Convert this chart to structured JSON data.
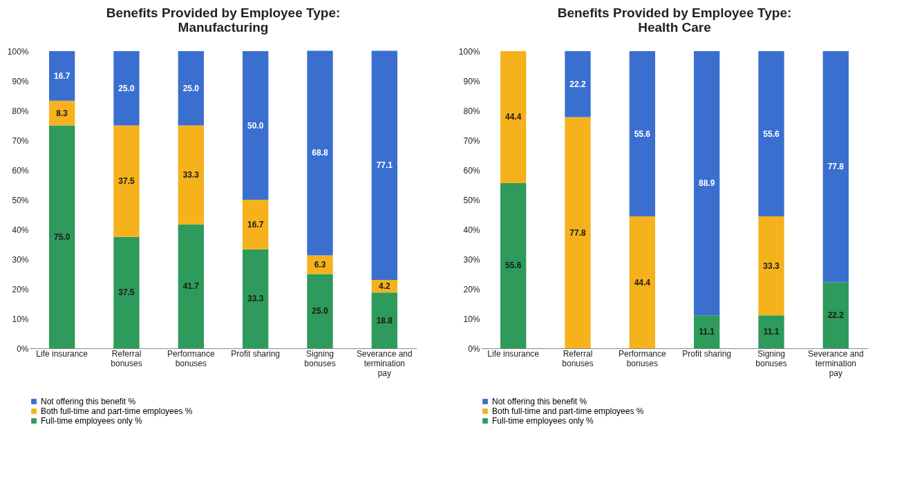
{
  "chart_data": [
    {
      "type": "bar",
      "title": "Benefits Provided by Employee Type: Manufacturing",
      "stacked": true,
      "legend": "bottom",
      "categories": [
        "Life insurance",
        "Referral bonuses",
        "Performance bonuses",
        "Profit sharing",
        "Signing bonuses",
        "Severance and termination pay"
      ],
      "ylim": [
        0,
        100
      ],
      "yticks": [
        {
          "value": 0,
          "label": "0%"
        },
        {
          "value": 10,
          "label": "10%"
        },
        {
          "value": 20,
          "label": "20%"
        },
        {
          "value": 30,
          "label": "30%"
        },
        {
          "value": 40,
          "label": "40%"
        },
        {
          "value": 50,
          "label": "50%"
        },
        {
          "value": 60,
          "label": "60%"
        },
        {
          "value": 70,
          "label": "70%"
        },
        {
          "value": 80,
          "label": "80%"
        },
        {
          "value": 90,
          "label": "90%"
        },
        {
          "value": 100,
          "label": "100%"
        }
      ],
      "series": [
        {
          "name": "Full-time employees only %",
          "color": "#2e9a5c",
          "values": [
            75.0,
            37.5,
            41.7,
            33.3,
            25.0,
            18.8
          ],
          "value_labels": [
            "75.0",
            "37.5",
            "41.7",
            "33.3",
            "25.0",
            "18.8"
          ]
        },
        {
          "name": "Both full-time and part-time employees %",
          "color": "#f5b21c",
          "values": [
            8.3,
            37.5,
            33.3,
            16.7,
            6.3,
            4.2
          ],
          "value_labels": [
            "8.3",
            "37.5",
            "33.3",
            "16.7",
            "6.3",
            "4.2"
          ]
        },
        {
          "name": "Not offering this benefit %",
          "color": "#3a6fd0",
          "values": [
            16.7,
            25.0,
            25.0,
            50.0,
            68.8,
            77.1
          ],
          "value_labels": [
            "16.7",
            "25.0",
            "25.0",
            "50.0",
            "68.8",
            "77.1"
          ]
        }
      ]
    },
    {
      "type": "bar",
      "title": "Benefits Provided by Employee Type: Health Care",
      "stacked": true,
      "legend": "bottom",
      "categories": [
        "Life insurance",
        "Referral bonuses",
        "Performance bonuses",
        "Profit sharing",
        "Signing bonuses",
        "Severance and termination pay"
      ],
      "ylim": [
        0,
        100
      ],
      "yticks": [
        {
          "value": 0,
          "label": "0%"
        },
        {
          "value": 10,
          "label": "10%"
        },
        {
          "value": 20,
          "label": "20%"
        },
        {
          "value": 30,
          "label": "30%"
        },
        {
          "value": 40,
          "label": "40%"
        },
        {
          "value": 50,
          "label": "50%"
        },
        {
          "value": 60,
          "label": "60%"
        },
        {
          "value": 70,
          "label": "70%"
        },
        {
          "value": 80,
          "label": "80%"
        },
        {
          "value": 90,
          "label": "90%"
        },
        {
          "value": 100,
          "label": "100%"
        }
      ],
      "series": [
        {
          "name": "Full-time employees only %",
          "color": "#2e9a5c",
          "values": [
            55.6,
            0,
            0,
            11.1,
            11.1,
            22.2
          ],
          "value_labels": [
            "55.6",
            null,
            null,
            "11.1",
            "11.1",
            "22.2"
          ]
        },
        {
          "name": "Both full-time and part-time employees %",
          "color": "#f5b21c",
          "values": [
            44.4,
            77.8,
            44.4,
            0,
            33.3,
            0
          ],
          "value_labels": [
            "44.4",
            "77.8",
            "44.4",
            null,
            "33.3",
            null
          ]
        },
        {
          "name": "Not offering this benefit %",
          "color": "#3a6fd0",
          "values": [
            0,
            22.2,
            55.6,
            88.9,
            55.6,
            77.8
          ],
          "value_labels": [
            null,
            "22.2",
            "55.6",
            "88.9",
            "55.6",
            "77.8"
          ]
        }
      ]
    }
  ]
}
